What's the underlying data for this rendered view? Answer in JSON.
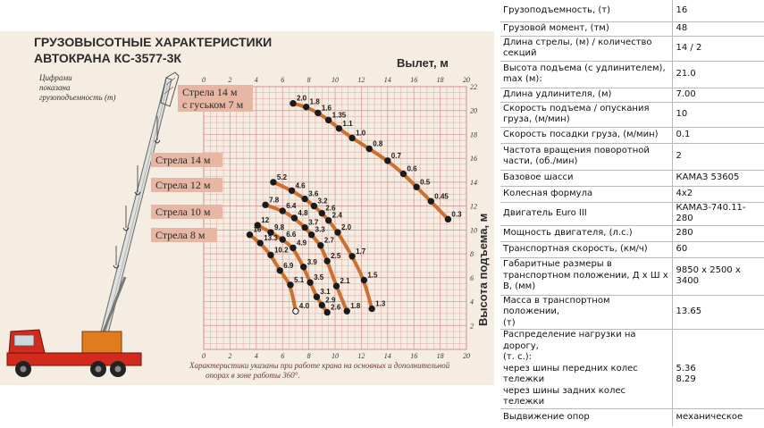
{
  "chart_data": {
    "type": "line",
    "title_line1": "ГРУЗОВЫСОТНЫЕ ХАРАКТЕРИСТИКИ",
    "title_line2": "АВТОКРАНА КС-3577-3К",
    "note_lines": [
      "Цифрами",
      "показана",
      "грузоподъемность (т)"
    ],
    "xlabel": "Вылет, м",
    "ylabel": "Высота подъема, м",
    "x_ticks": [
      0,
      2,
      4,
      6,
      8,
      10,
      12,
      14,
      16,
      18,
      20
    ],
    "x_ticks_labels": [
      "0",
      "2",
      "4",
      "6",
      "8",
      "10",
      "12",
      "14",
      "16",
      "18",
      "20"
    ],
    "y_ticks": [
      2,
      4,
      6,
      8,
      10,
      12,
      14,
      16,
      18,
      20,
      22
    ],
    "y_ticks_labels": [
      "2",
      "4",
      "6",
      "8",
      "10",
      "12",
      "14",
      "16",
      "18",
      "20",
      "22"
    ],
    "xlim": [
      0,
      20
    ],
    "ylim": [
      0,
      22
    ],
    "grid": true,
    "footnote_lines": [
      "Характеристики указаны при работе крана на основных и дополнительной",
      "опорах в зоне работы 360°."
    ],
    "series": [
      {
        "name": "Стрела 14 м с гуськом 7 м",
        "name_lines": [
          "Стрела 14 м",
          "с гуськом 7 м"
        ],
        "points": [
          {
            "x": 6.8,
            "y": 20.6,
            "label": "2.0"
          },
          {
            "x": 7.8,
            "y": 20.3,
            "label": "1.8"
          },
          {
            "x": 8.7,
            "y": 19.8,
            "label": "1.6"
          },
          {
            "x": 9.5,
            "y": 19.2,
            "label": "1.35"
          },
          {
            "x": 10.3,
            "y": 18.5,
            "label": "1.1"
          },
          {
            "x": 11.3,
            "y": 17.7,
            "label": "1.0"
          },
          {
            "x": 12.6,
            "y": 16.8,
            "label": "0.8"
          },
          {
            "x": 14.0,
            "y": 15.8,
            "label": "0.7"
          },
          {
            "x": 15.2,
            "y": 14.7,
            "label": "0.6"
          },
          {
            "x": 16.2,
            "y": 13.6,
            "label": "0.5"
          },
          {
            "x": 17.3,
            "y": 12.4,
            "label": "0.45"
          },
          {
            "x": 18.6,
            "y": 10.9,
            "label": "0.3"
          }
        ]
      },
      {
        "name": "Стрела 14 м",
        "name_lines": [
          "Стрела 14 м"
        ],
        "points": [
          {
            "x": 5.3,
            "y": 14.0,
            "label": "5.2"
          },
          {
            "x": 6.7,
            "y": 13.3,
            "label": "4.6"
          },
          {
            "x": 7.7,
            "y": 12.6,
            "label": "3.6"
          },
          {
            "x": 8.4,
            "y": 12.0,
            "label": "3.2"
          },
          {
            "x": 9.0,
            "y": 11.4,
            "label": "2.6"
          },
          {
            "x": 9.5,
            "y": 10.8,
            "label": "2.4"
          },
          {
            "x": 10.2,
            "y": 9.8,
            "label": "2.0"
          },
          {
            "x": 11.3,
            "y": 7.8,
            "label": "1.7"
          },
          {
            "x": 12.2,
            "y": 5.8,
            "label": "1.5"
          },
          {
            "x": 12.8,
            "y": 3.4,
            "label": "1.3"
          }
        ]
      },
      {
        "name": "Стрела 12 м",
        "name_lines": [
          "Стрела 12 м"
        ],
        "points": [
          {
            "x": 4.7,
            "y": 12.1,
            "label": "7.8"
          },
          {
            "x": 6.0,
            "y": 11.6,
            "label": "6.4"
          },
          {
            "x": 6.9,
            "y": 11.0,
            "label": "4.8"
          },
          {
            "x": 7.7,
            "y": 10.2,
            "label": "3.7"
          },
          {
            "x": 8.2,
            "y": 9.6,
            "label": "3.3"
          },
          {
            "x": 8.9,
            "y": 8.7,
            "label": "2.7"
          },
          {
            "x": 9.4,
            "y": 7.4,
            "label": "2.5"
          },
          {
            "x": 10.1,
            "y": 5.3,
            "label": "2.1"
          },
          {
            "x": 10.9,
            "y": 3.2,
            "label": "1.8"
          }
        ]
      },
      {
        "name": "Стрела 10 м",
        "name_lines": [
          "Стрела 10 м"
        ],
        "points": [
          {
            "x": 4.1,
            "y": 10.4,
            "label": "12"
          },
          {
            "x": 5.1,
            "y": 9.8,
            "label": "9.8"
          },
          {
            "x": 6.0,
            "y": 9.2,
            "label": "6.6"
          },
          {
            "x": 6.8,
            "y": 8.5,
            "label": "4.9"
          },
          {
            "x": 7.6,
            "y": 6.9,
            "label": "3.9"
          },
          {
            "x": 8.1,
            "y": 5.6,
            "label": "3.5"
          },
          {
            "x": 8.6,
            "y": 4.4,
            "label": "3.1"
          },
          {
            "x": 9.0,
            "y": 3.7,
            "label": "2.9"
          },
          {
            "x": 9.4,
            "y": 3.1,
            "label": "2.6"
          }
        ]
      },
      {
        "name": "Стрела 8 м",
        "name_lines": [
          "Стрела 8 м"
        ],
        "points": [
          {
            "x": 3.5,
            "y": 9.6,
            "label": "16"
          },
          {
            "x": 4.3,
            "y": 8.9,
            "label": "13.3"
          },
          {
            "x": 5.1,
            "y": 7.9,
            "label": "10.2"
          },
          {
            "x": 5.8,
            "y": 6.6,
            "label": "6.9"
          },
          {
            "x": 6.6,
            "y": 5.4,
            "label": "5.1"
          },
          {
            "x": 7.0,
            "y": 3.2,
            "label": "4.0"
          }
        ]
      }
    ]
  },
  "specs": {
    "rows": [
      {
        "key": [
          "Грузоподъемность, (т)"
        ],
        "value": [
          "16"
        ]
      },
      {
        "key": [
          "Грузовой момент, (тм)"
        ],
        "value": [
          "48"
        ]
      },
      {
        "key": [
          "Длина стрелы, (м) / количество",
          "секций"
        ],
        "value": [
          "14 / 2"
        ]
      },
      {
        "key": [
          "Высота подъема (с удлинителем),",
          "max (м):"
        ],
        "value": [
          "21.0"
        ]
      },
      {
        "key": [
          "Длина удлинителя, (м)"
        ],
        "value": [
          "7.00"
        ]
      },
      {
        "key": [
          "Скорость подъема / опускания",
          "груза, (м/мин)"
        ],
        "value": [
          "10"
        ]
      },
      {
        "key": [
          "Скорость посадки груза, (м/мин)"
        ],
        "value": [
          "0.1"
        ]
      },
      {
        "key": [
          "Частота вращения поворотной",
          "части, (об./мин)"
        ],
        "value": [
          "2"
        ]
      },
      {
        "key": [
          "Базовое шасси"
        ],
        "value": [
          "КАМАЗ 53605"
        ]
      },
      {
        "key": [
          "Колесная формула"
        ],
        "value": [
          "4х2"
        ]
      },
      {
        "key": [
          "Двигатель Euro III"
        ],
        "value": [
          "КАМАЗ-740.11-280"
        ]
      },
      {
        "key": [
          "Мощность двигателя, (л.с.)"
        ],
        "value": [
          "280"
        ]
      },
      {
        "key": [
          "Транспортная скорость, (км/ч)"
        ],
        "value": [
          "60"
        ]
      },
      {
        "key": [
          "Габаритные размеры в",
          "транспортном положении, Д х Ш х",
          "В, (мм)"
        ],
        "value": [
          "9850 х 2500 х",
          "3400"
        ]
      },
      {
        "key": [
          "Масса в транспортном положении,",
          "(т)"
        ],
        "value": [
          "13.65"
        ]
      },
      {
        "key": [
          "Распределение нагрузки на дорогу,",
          "(т. с.):",
          "через шины передних колес",
          "тележки",
          "через шины задних колес тележки"
        ],
        "value": [
          "",
          "",
          "5.36",
          "8.29",
          ""
        ]
      },
      {
        "key": [
          "Выдвижение опор"
        ],
        "value": [
          "механическое"
        ]
      }
    ]
  },
  "colors": {
    "panel_bg": "#f6ede2",
    "grid": "#d98a8a",
    "curve": "#c8631c",
    "dot": "#1a1a1a",
    "label_box": "#e7b7a4",
    "truck_red": "#d22a1d",
    "crane_orange": "#e07b1e"
  },
  "icons": {
    "crane_illustration": "truck-crane-illustration"
  }
}
